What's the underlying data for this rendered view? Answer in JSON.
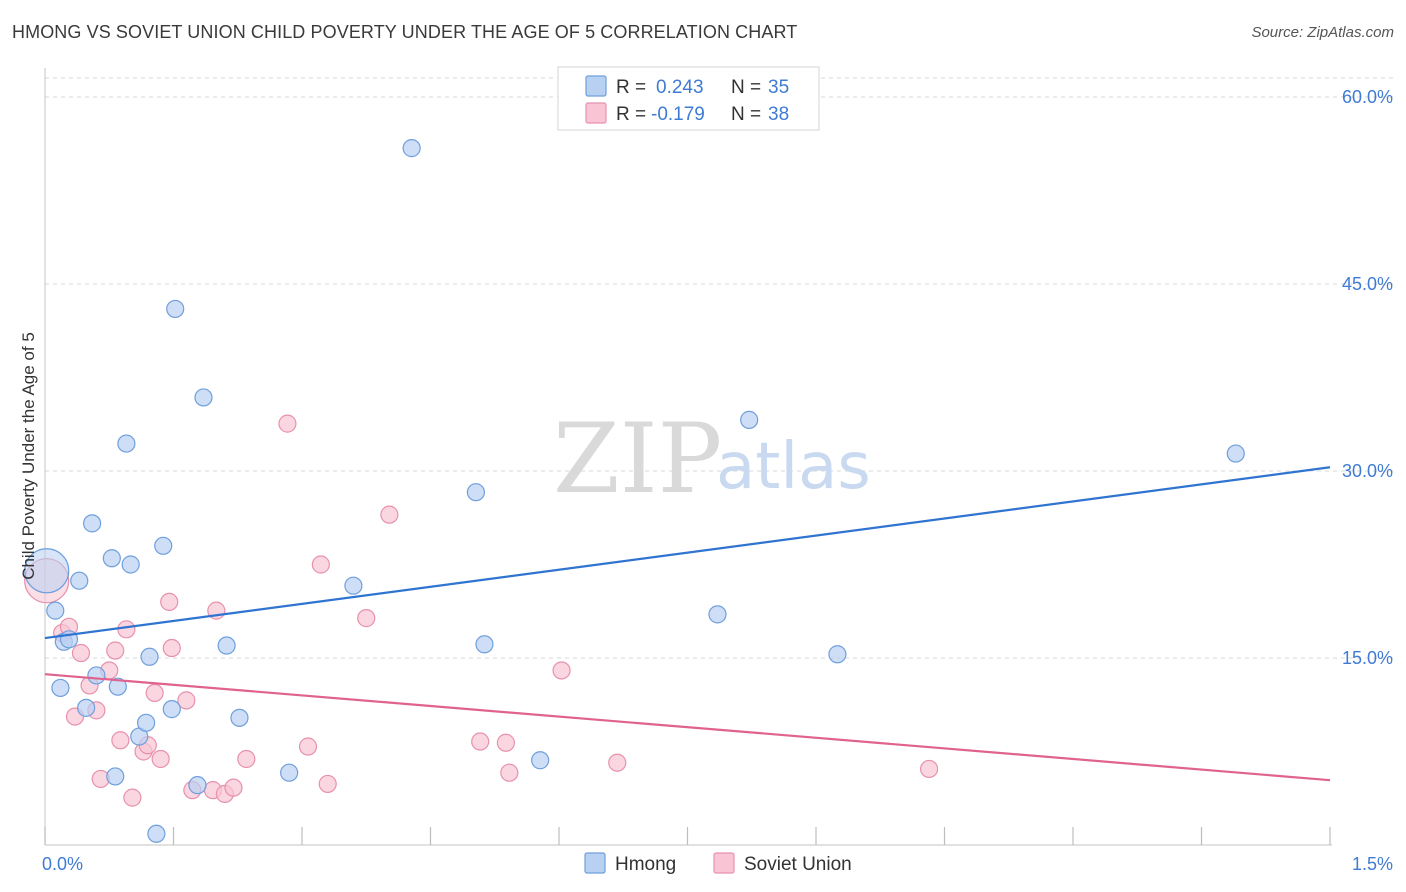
{
  "header": {
    "title": "HMONG VS SOVIET UNION CHILD POVERTY UNDER THE AGE OF 5 CORRELATION CHART",
    "source": "Source: ZipAtlas.com"
  },
  "watermark": {
    "zip": "ZIP",
    "atlas": "atlas"
  },
  "legend_top": {
    "hmong": {
      "r_label": "R =",
      "r_value": "0.243",
      "n_label": "N =",
      "n_value": "35"
    },
    "soviet": {
      "r_label": "R =",
      "r_value": "-0.179",
      "n_label": "N =",
      "n_value": "38"
    }
  },
  "legend_bottom": {
    "hmong": "Hmong",
    "soviet": "Soviet Union"
  },
  "colors": {
    "hmong_fill": "#b8d0f2",
    "hmong_stroke": "#6f9fdc",
    "hmong_line": "#2f74d0",
    "soviet_fill": "#f8c5d4",
    "soviet_stroke": "#e891ad",
    "soviet_line": "#e0628f",
    "grid": "#d8d8d8",
    "tick_text": "#3f7bd4"
  },
  "chart_data": {
    "type": "scatter",
    "title": "HMONG VS SOVIET UNION CHILD POVERTY UNDER THE AGE OF 5 CORRELATION CHART",
    "xlabel": "",
    "ylabel": "Child Poverty Under the Age of 5",
    "xlim": [
      0,
      1.5
    ],
    "ylim": [
      0,
      60
    ],
    "x_tick_labels": [
      "0.0%",
      "1.5%"
    ],
    "y_ticks": [
      15,
      30,
      45,
      60
    ],
    "y_tick_labels": [
      "15.0%",
      "30.0%",
      "45.0%",
      "60.0%"
    ],
    "grid": true,
    "series": [
      {
        "name": "Hmong",
        "r": 0.243,
        "n": 35,
        "trend": {
          "x": [
            0,
            1.5
          ],
          "y": [
            16.6,
            30.3
          ]
        },
        "points": [
          {
            "x": 0.002,
            "y": 22.0,
            "big": true
          },
          {
            "x": 0.012,
            "y": 18.8
          },
          {
            "x": 0.018,
            "y": 12.6
          },
          {
            "x": 0.022,
            "y": 16.3
          },
          {
            "x": 0.028,
            "y": 16.5
          },
          {
            "x": 0.04,
            "y": 21.2
          },
          {
            "x": 0.048,
            "y": 11.0
          },
          {
            "x": 0.055,
            "y": 25.8
          },
          {
            "x": 0.06,
            "y": 13.6
          },
          {
            "x": 0.078,
            "y": 23.0
          },
          {
            "x": 0.082,
            "y": 5.5
          },
          {
            "x": 0.085,
            "y": 12.7
          },
          {
            "x": 0.095,
            "y": 32.2
          },
          {
            "x": 0.1,
            "y": 22.5
          },
          {
            "x": 0.11,
            "y": 8.7
          },
          {
            "x": 0.118,
            "y": 9.8
          },
          {
            "x": 0.122,
            "y": 15.1
          },
          {
            "x": 0.13,
            "y": 0.9
          },
          {
            "x": 0.138,
            "y": 24.0
          },
          {
            "x": 0.148,
            "y": 10.9
          },
          {
            "x": 0.152,
            "y": 43.0
          },
          {
            "x": 0.178,
            "y": 4.8
          },
          {
            "x": 0.185,
            "y": 35.9
          },
          {
            "x": 0.212,
            "y": 16.0
          },
          {
            "x": 0.227,
            "y": 10.2
          },
          {
            "x": 0.285,
            "y": 5.8
          },
          {
            "x": 0.36,
            "y": 20.8
          },
          {
            "x": 0.428,
            "y": 55.9
          },
          {
            "x": 0.503,
            "y": 28.3
          },
          {
            "x": 0.513,
            "y": 16.1
          },
          {
            "x": 0.578,
            "y": 6.8
          },
          {
            "x": 0.785,
            "y": 18.5
          },
          {
            "x": 0.822,
            "y": 34.1
          },
          {
            "x": 0.925,
            "y": 15.3
          },
          {
            "x": 1.39,
            "y": 31.4
          }
        ]
      },
      {
        "name": "Soviet Union",
        "r": -0.179,
        "n": 38,
        "trend": {
          "x": [
            0,
            1.5
          ],
          "y": [
            13.7,
            5.2
          ]
        },
        "points": [
          {
            "x": 0.002,
            "y": 21.2,
            "big": true
          },
          {
            "x": 0.02,
            "y": 17.0
          },
          {
            "x": 0.028,
            "y": 17.5
          },
          {
            "x": 0.035,
            "y": 10.3
          },
          {
            "x": 0.042,
            "y": 15.4
          },
          {
            "x": 0.052,
            "y": 12.8
          },
          {
            "x": 0.06,
            "y": 10.8
          },
          {
            "x": 0.065,
            "y": 5.3
          },
          {
            "x": 0.075,
            "y": 14.0
          },
          {
            "x": 0.082,
            "y": 15.6
          },
          {
            "x": 0.088,
            "y": 8.4
          },
          {
            "x": 0.095,
            "y": 17.3
          },
          {
            "x": 0.102,
            "y": 3.8
          },
          {
            "x": 0.115,
            "y": 7.5
          },
          {
            "x": 0.12,
            "y": 8.0
          },
          {
            "x": 0.128,
            "y": 12.2
          },
          {
            "x": 0.135,
            "y": 6.9
          },
          {
            "x": 0.145,
            "y": 19.5
          },
          {
            "x": 0.148,
            "y": 15.8
          },
          {
            "x": 0.165,
            "y": 11.6
          },
          {
            "x": 0.172,
            "y": 4.4
          },
          {
            "x": 0.196,
            "y": 4.4
          },
          {
            "x": 0.2,
            "y": 18.8
          },
          {
            "x": 0.21,
            "y": 4.1
          },
          {
            "x": 0.235,
            "y": 6.9
          },
          {
            "x": 0.283,
            "y": 33.8
          },
          {
            "x": 0.307,
            "y": 7.9
          },
          {
            "x": 0.322,
            "y": 22.5
          },
          {
            "x": 0.33,
            "y": 4.9
          },
          {
            "x": 0.375,
            "y": 18.2
          },
          {
            "x": 0.402,
            "y": 26.5
          },
          {
            "x": 0.508,
            "y": 8.3
          },
          {
            "x": 0.538,
            "y": 8.2
          },
          {
            "x": 0.542,
            "y": 5.8
          },
          {
            "x": 0.603,
            "y": 14.0
          },
          {
            "x": 0.668,
            "y": 6.6
          },
          {
            "x": 1.032,
            "y": 6.1
          },
          {
            "x": 0.22,
            "y": 4.6
          }
        ]
      }
    ]
  }
}
